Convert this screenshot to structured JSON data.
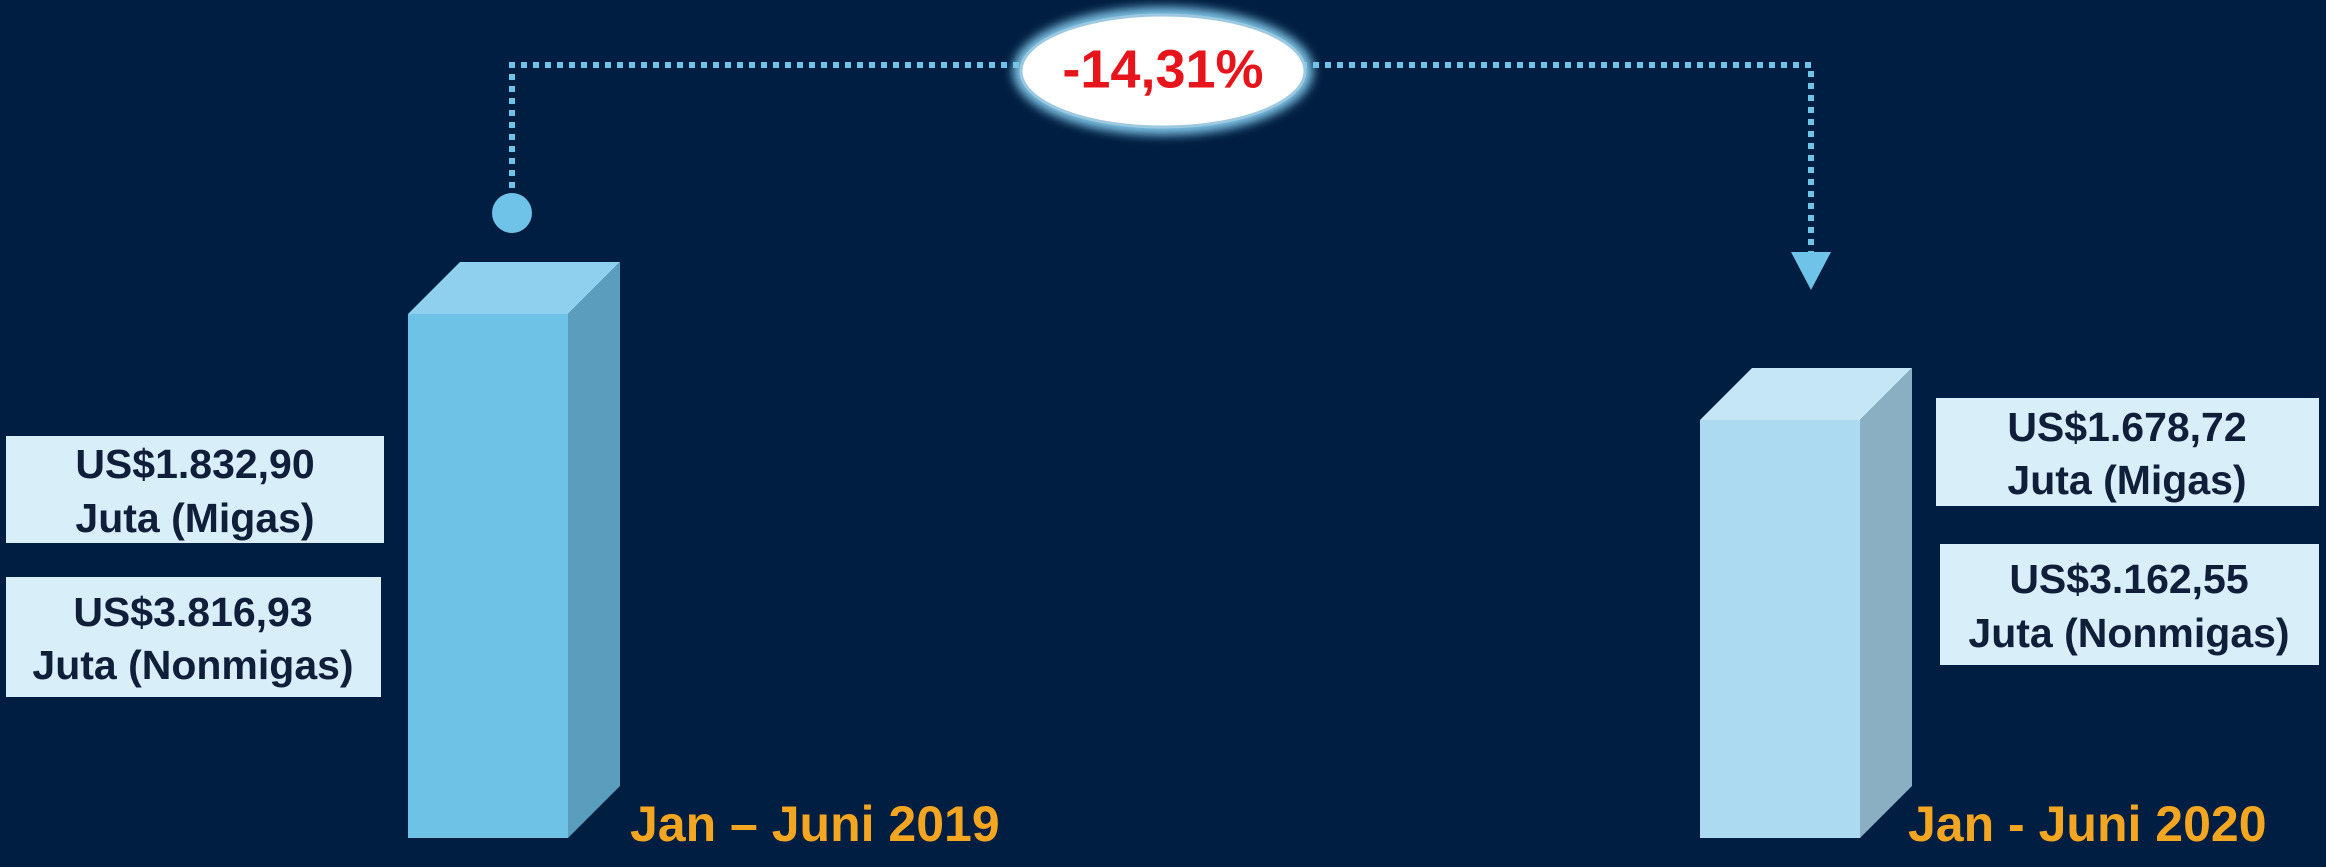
{
  "change": "-14,31%",
  "periods": [
    {
      "label": "Jan – Juni 2019",
      "migas": [
        "US$1.832,90",
        "Juta (Migas)"
      ],
      "nonmigas": [
        "US$3.816,93",
        "Juta (Nonmigas)"
      ]
    },
    {
      "label": "Jan - Juni 2020",
      "migas": [
        "US$1.678,72",
        "Juta (Migas)"
      ],
      "nonmigas": [
        "US$3.162,55",
        "Juta (Nonmigas)"
      ]
    }
  ]
}
